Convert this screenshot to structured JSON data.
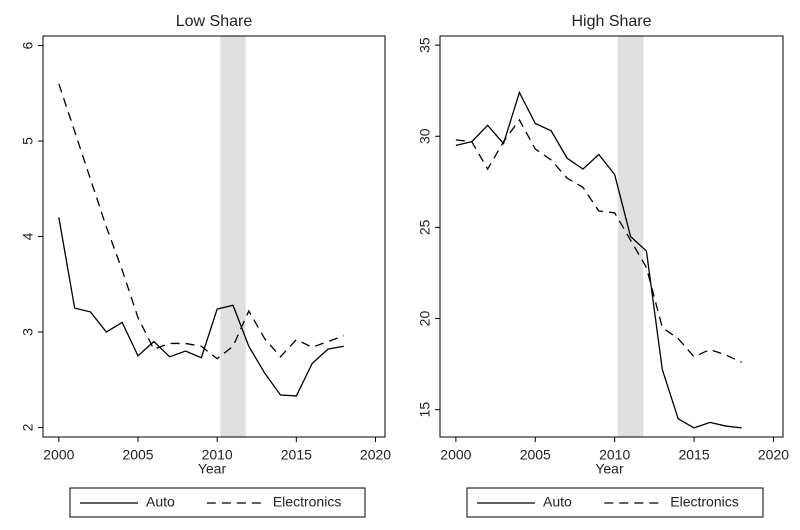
{
  "chart_data": [
    {
      "type": "line",
      "title": "Low Share",
      "x_label": "Year",
      "x": [
        2000,
        2001,
        2002,
        2003,
        2004,
        2005,
        2006,
        2007,
        2008,
        2009,
        2010,
        2011,
        2012,
        2013,
        2014,
        2015,
        2016,
        2017,
        2018
      ],
      "series": [
        {
          "name": "Auto",
          "color": "#000000",
          "dash": "solid",
          "values": [
            4.2,
            3.25,
            3.21,
            3.0,
            3.1,
            2.75,
            2.9,
            2.74,
            2.8,
            2.73,
            3.24,
            3.28,
            2.85,
            2.57,
            2.34,
            2.33,
            2.67,
            2.82,
            2.85
          ]
        },
        {
          "name": "Electronics",
          "color": "#000000",
          "dash": "dashed",
          "values": [
            5.6,
            5.1,
            4.6,
            4.1,
            3.65,
            3.15,
            2.82,
            2.88,
            2.88,
            2.85,
            2.72,
            2.85,
            3.22,
            2.93,
            2.74,
            2.92,
            2.84,
            2.9,
            2.96
          ]
        }
      ],
      "xlim": [
        1999,
        2020.6
      ],
      "xticks": [
        2000,
        2005,
        2010,
        2015,
        2020
      ],
      "ylim": [
        1.9,
        6.1
      ],
      "yticks": [
        2,
        3,
        4,
        5,
        6
      ],
      "highlight_x": [
        2010.2,
        2011.8
      ],
      "legend": "bottom"
    },
    {
      "type": "line",
      "title": "High Share",
      "x_label": "Year",
      "x": [
        2000,
        2001,
        2002,
        2003,
        2004,
        2005,
        2006,
        2007,
        2008,
        2009,
        2010,
        2011,
        2012,
        2013,
        2014,
        2015,
        2016,
        2017,
        2018
      ],
      "series": [
        {
          "name": "Auto",
          "color": "#000000",
          "dash": "solid",
          "values": [
            29.5,
            29.7,
            30.6,
            29.6,
            32.4,
            30.7,
            30.3,
            28.8,
            28.2,
            29.0,
            27.9,
            24.5,
            23.7,
            17.2,
            14.5,
            14.0,
            14.3,
            14.1,
            14.0
          ]
        },
        {
          "name": "Electronics",
          "color": "#000000",
          "dash": "dashed",
          "values": [
            29.8,
            29.7,
            28.2,
            29.7,
            30.9,
            29.3,
            28.7,
            27.7,
            27.2,
            25.9,
            25.8,
            24.3,
            22.8,
            19.5,
            18.9,
            17.9,
            18.3,
            18.0,
            17.6
          ]
        }
      ],
      "xlim": [
        1999,
        2020.6
      ],
      "xticks": [
        2000,
        2005,
        2010,
        2015,
        2020
      ],
      "ylim": [
        13.5,
        35.5
      ],
      "yticks": [
        15,
        20,
        25,
        30,
        35
      ],
      "highlight_x": [
        2010.2,
        2011.8
      ],
      "legend": "bottom"
    }
  ]
}
